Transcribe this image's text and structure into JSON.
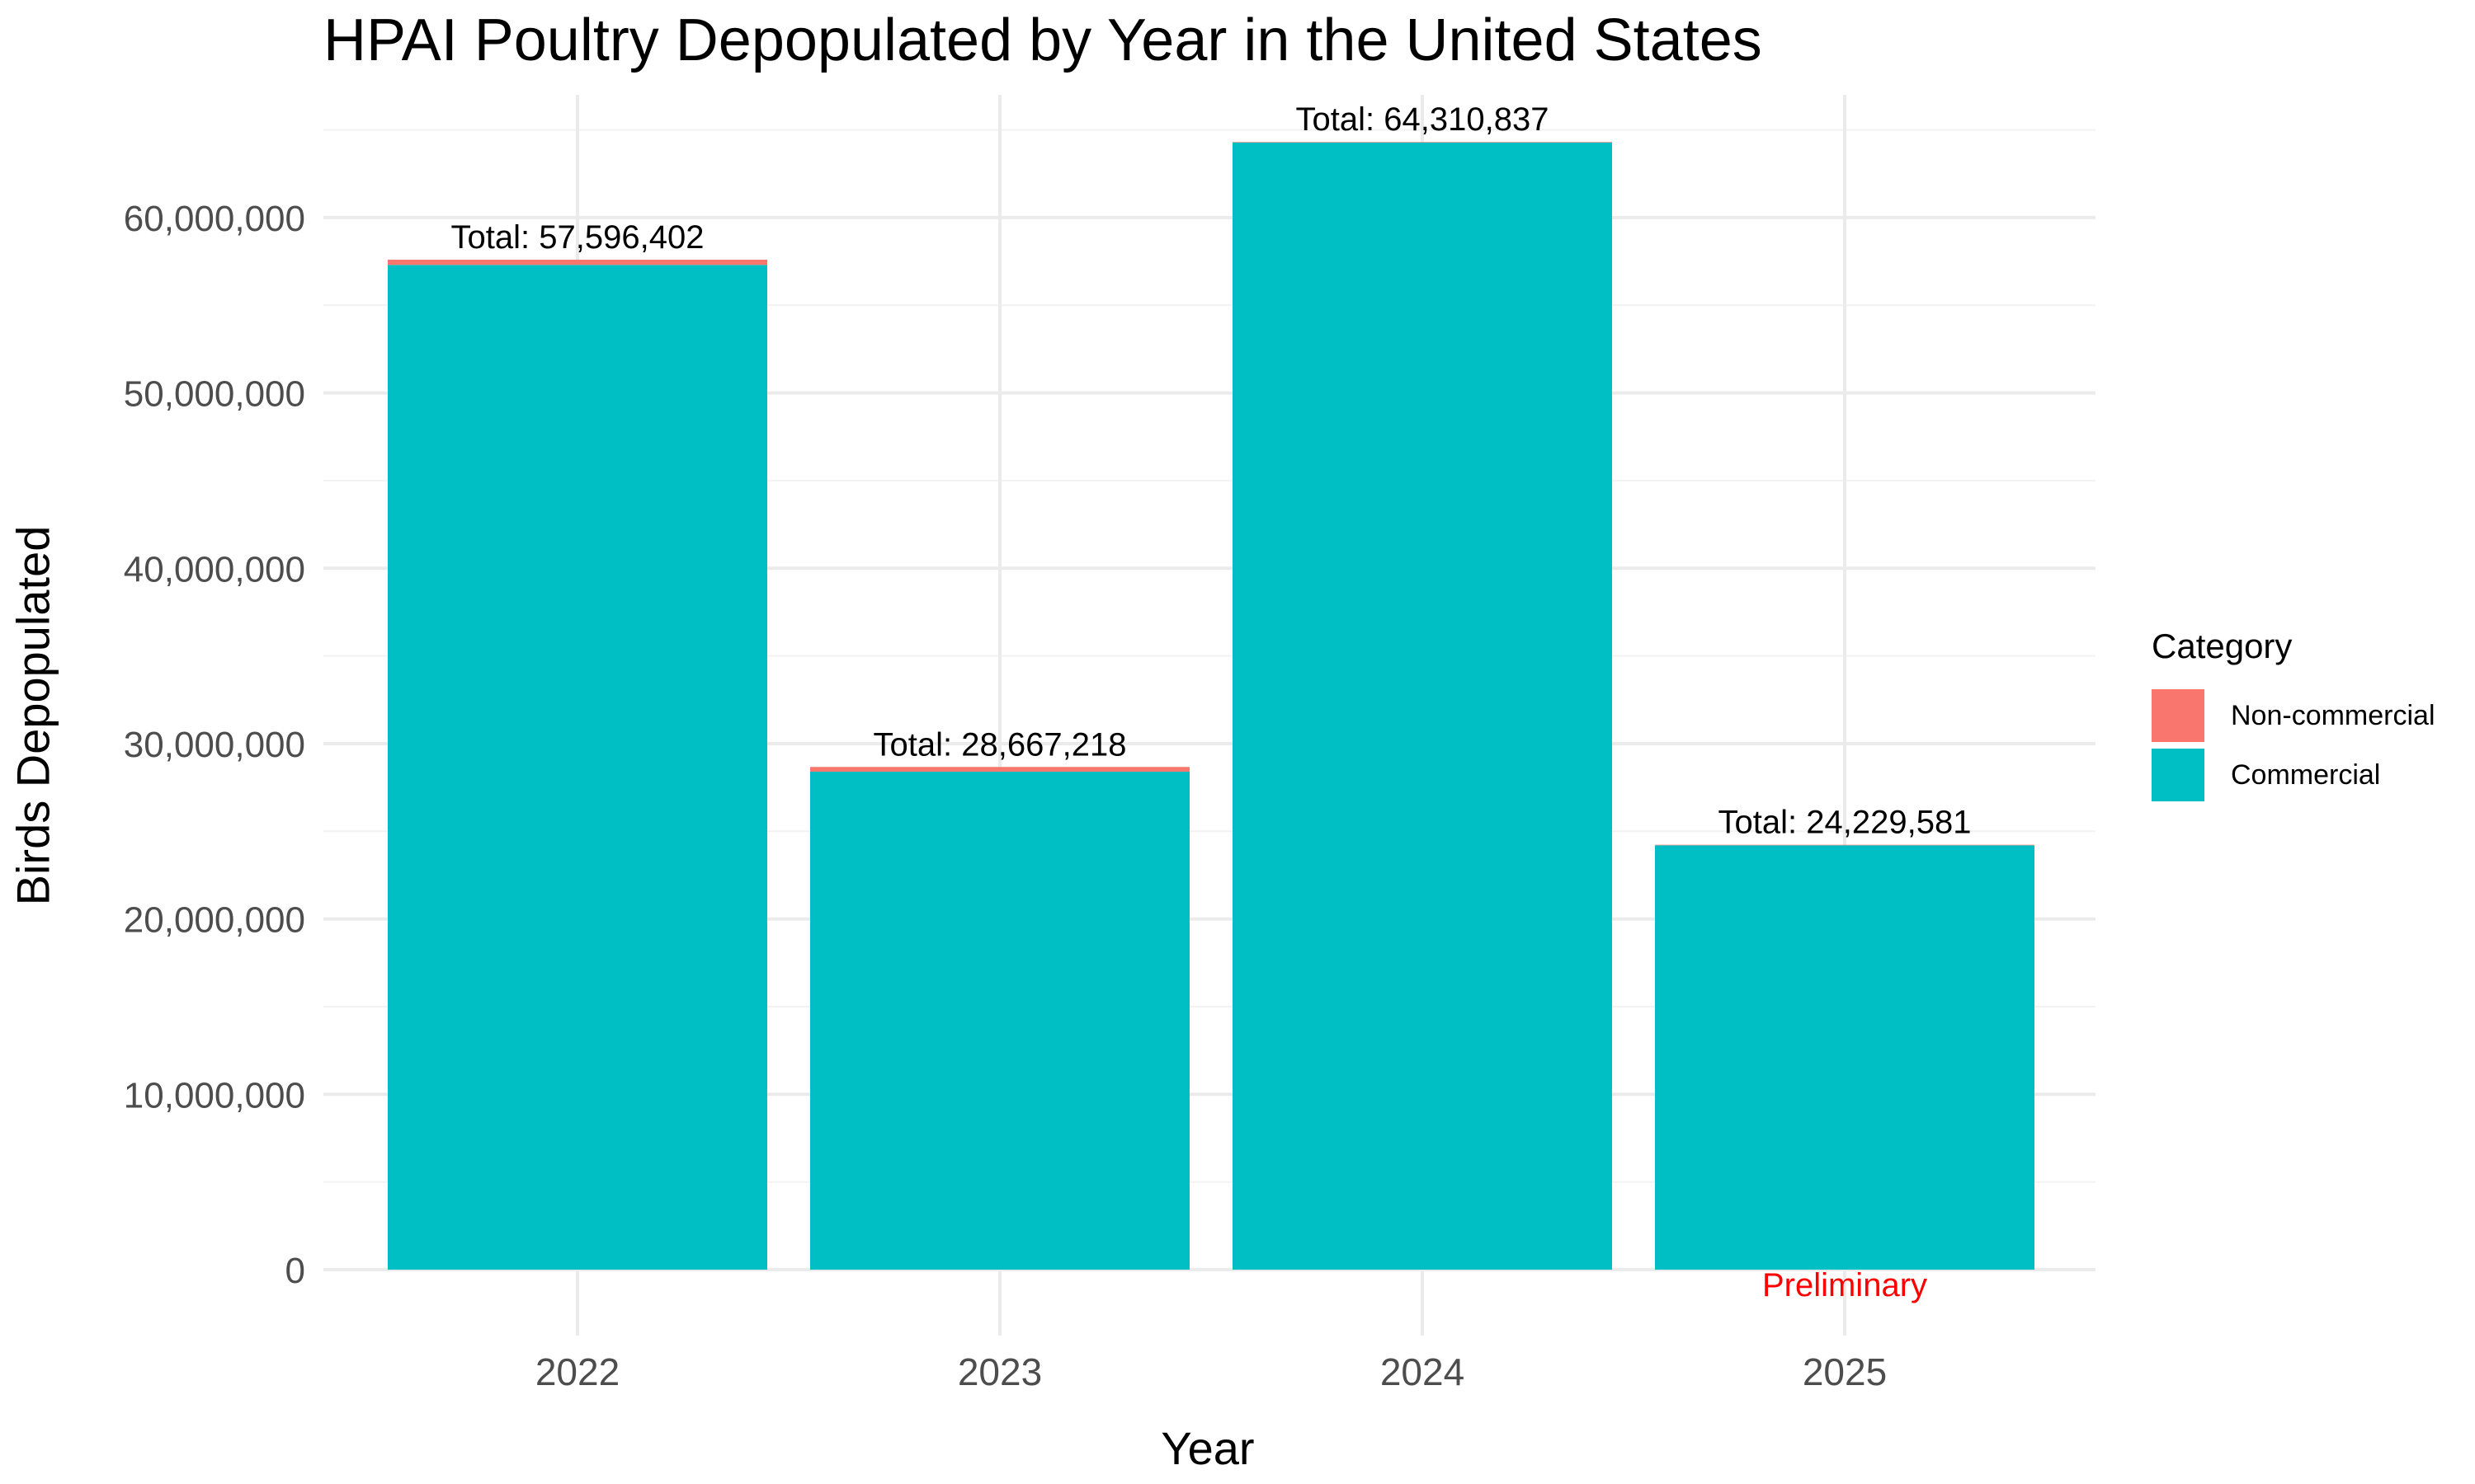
{
  "chart_data": {
    "type": "bar",
    "stacked": true,
    "title": "HPAI Poultry Depopulated by Year in the United States",
    "xlabel": "Year",
    "ylabel": "Birds Depopulated",
    "categories": [
      "2022",
      "2023",
      "2024",
      "2025"
    ],
    "series": [
      {
        "name": "Commercial",
        "color": "#00BFC4",
        "values": [
          57300000,
          28400000,
          64280000,
          24200000
        ]
      },
      {
        "name": "Non-commercial",
        "color": "#F8766D",
        "values": [
          296402,
          267218,
          30837,
          29581
        ]
      }
    ],
    "totals": [
      57596402,
      28667218,
      64310837,
      24229581
    ],
    "total_labels": [
      "Total: 57,596,402",
      "Total: 28,667,218",
      "Total: 64,310,837",
      "Total: 24,229,581"
    ],
    "annotations": [
      {
        "category": "2025",
        "text": "Preliminary",
        "color": "#FF0000"
      }
    ],
    "ylim": [
      0,
      67000000
    ],
    "yticks": [
      0,
      10000000,
      20000000,
      30000000,
      40000000,
      50000000,
      60000000
    ],
    "ytick_labels": [
      "0",
      "10,000,000",
      "20,000,000",
      "30,000,000",
      "40,000,000",
      "50,000,000",
      "60,000,000"
    ],
    "grid": true,
    "legend": {
      "title": "Category",
      "position": "right",
      "items": [
        {
          "label": "Non-commercial",
          "color": "#F8766D"
        },
        {
          "label": "Commercial",
          "color": "#00BFC4"
        }
      ]
    }
  }
}
